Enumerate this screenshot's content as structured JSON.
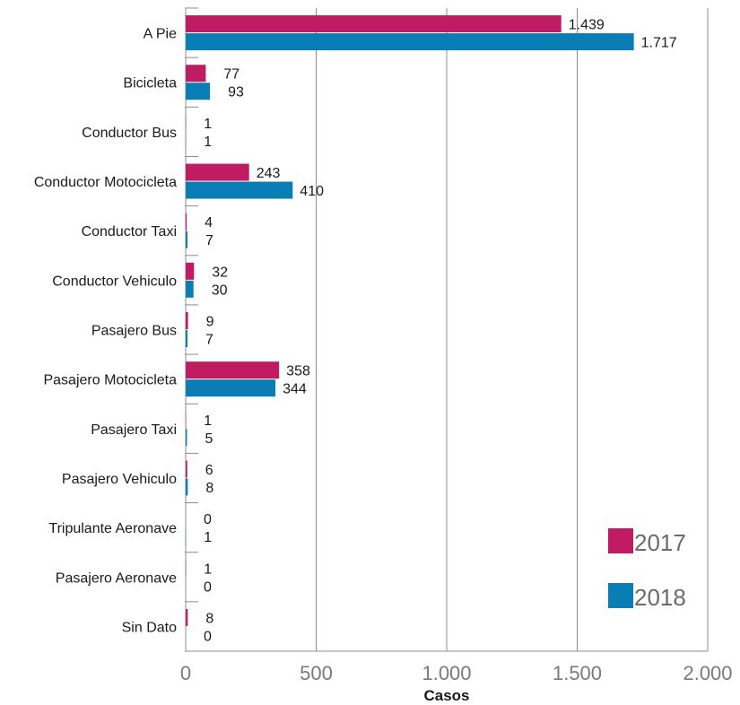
{
  "chart_data": {
    "type": "bar",
    "orientation": "horizontal",
    "categories": [
      "A Pie",
      "Bicicleta",
      "Conductor Bus",
      "Conductor Motocicleta",
      "Conductor Taxi",
      "Conductor Vehiculo",
      "Pasajero Bus",
      "Pasajero Motocicleta",
      "Pasajero Taxi",
      "Pasajero Vehiculo",
      "Tripulante Aeronave",
      "Pasajero Aeronave",
      "Sin Dato"
    ],
    "series": [
      {
        "name": "2017",
        "color": "#c01c64",
        "values": [
          1439,
          77,
          1,
          243,
          4,
          32,
          9,
          358,
          1,
          6,
          0,
          1,
          8
        ],
        "labels": [
          "1.439",
          "77",
          "1",
          "243",
          "4",
          "32",
          "9",
          "358",
          "1",
          "6",
          "0",
          "1",
          "8"
        ]
      },
      {
        "name": "2018",
        "color": "#0a7db5",
        "values": [
          1717,
          93,
          1,
          410,
          7,
          30,
          7,
          344,
          5,
          8,
          1,
          0,
          0
        ],
        "labels": [
          "1.717",
          "93",
          "1",
          "410",
          "7",
          "30",
          "7",
          "344",
          "5",
          "8",
          "1",
          "0",
          "0"
        ]
      }
    ],
    "xlabel": "Casos",
    "ylabel": "",
    "xlim": [
      0,
      2000
    ],
    "xticks": [
      0,
      500,
      1000,
      1500,
      2000
    ],
    "xtick_labels": [
      "0",
      "500",
      "1.000",
      "1.500",
      "2.000"
    ],
    "grid": "vertical",
    "legend_position": "bottom-right"
  }
}
